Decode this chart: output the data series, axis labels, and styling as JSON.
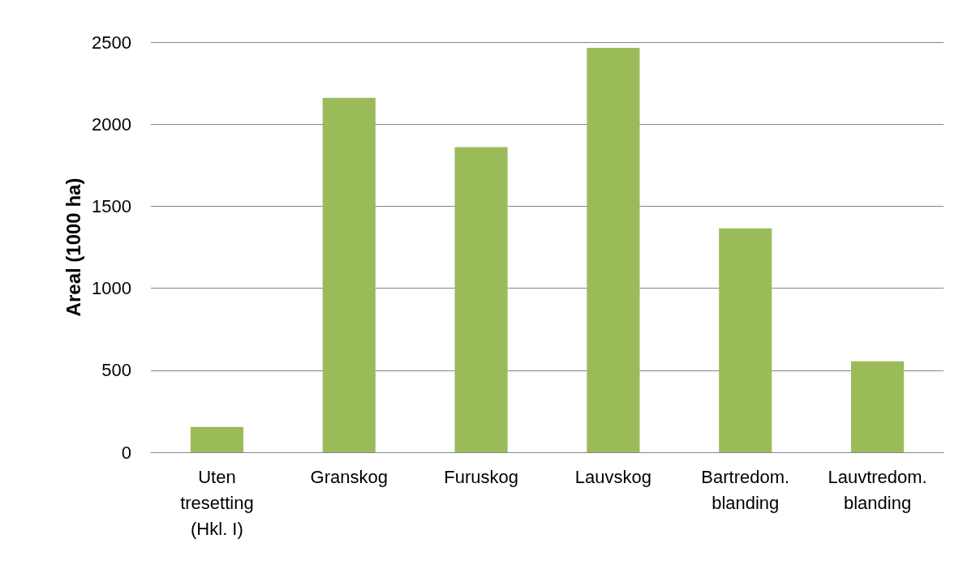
{
  "chart_data": {
    "type": "bar",
    "ylabel": "Areal (1000 ha)",
    "categories": [
      "Uten\ntresetting\n(Hkl. I)",
      "Granskog",
      "Furuskog",
      "Lauvskog",
      "Bartredom.\nblanding",
      "Lauvtredom.\nblanding"
    ],
    "values": [
      155,
      2160,
      1860,
      2465,
      1365,
      555
    ],
    "color": "#9bbb59",
    "ylim": [
      0,
      2500
    ],
    "yticks": [
      0,
      500,
      1000,
      1500,
      2000,
      2500
    ],
    "grid": "y"
  }
}
